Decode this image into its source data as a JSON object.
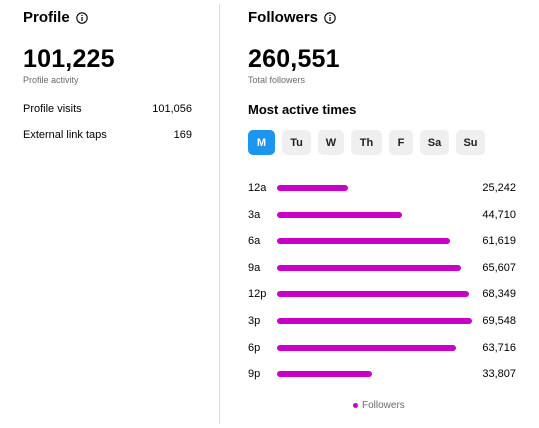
{
  "profile": {
    "title": "Profile",
    "total": "101,225",
    "total_label": "Profile activity",
    "metrics": [
      {
        "label": "Profile visits",
        "value": "101,056"
      },
      {
        "label": "External link taps",
        "value": "169"
      }
    ]
  },
  "followers": {
    "title": "Followers",
    "total": "260,551",
    "total_label": "Total followers",
    "active_times_heading": "Most active times",
    "days": [
      {
        "label": "M",
        "active": true
      },
      {
        "label": "Tu",
        "active": false
      },
      {
        "label": "W",
        "active": false
      },
      {
        "label": "Th",
        "active": false
      },
      {
        "label": "F",
        "active": false
      },
      {
        "label": "Sa",
        "active": false
      },
      {
        "label": "Su",
        "active": false
      }
    ]
  },
  "colors": {
    "bar": "#c800c8",
    "active_tab": "#1b95f0"
  },
  "icons": {
    "info": "info-icon"
  },
  "chart_data": {
    "type": "bar",
    "orientation": "horizontal",
    "categories": [
      "12a",
      "3a",
      "6a",
      "9a",
      "12p",
      "3p",
      "6p",
      "9p"
    ],
    "series": [
      {
        "name": "Followers",
        "values": [
          25242,
          44710,
          61619,
          65607,
          68349,
          69548,
          63716,
          33807
        ]
      }
    ],
    "value_labels": [
      "25,242",
      "44,710",
      "61,619",
      "65,607",
      "68,349",
      "69,548",
      "63,716",
      "33,807"
    ],
    "legend": "bottom"
  }
}
